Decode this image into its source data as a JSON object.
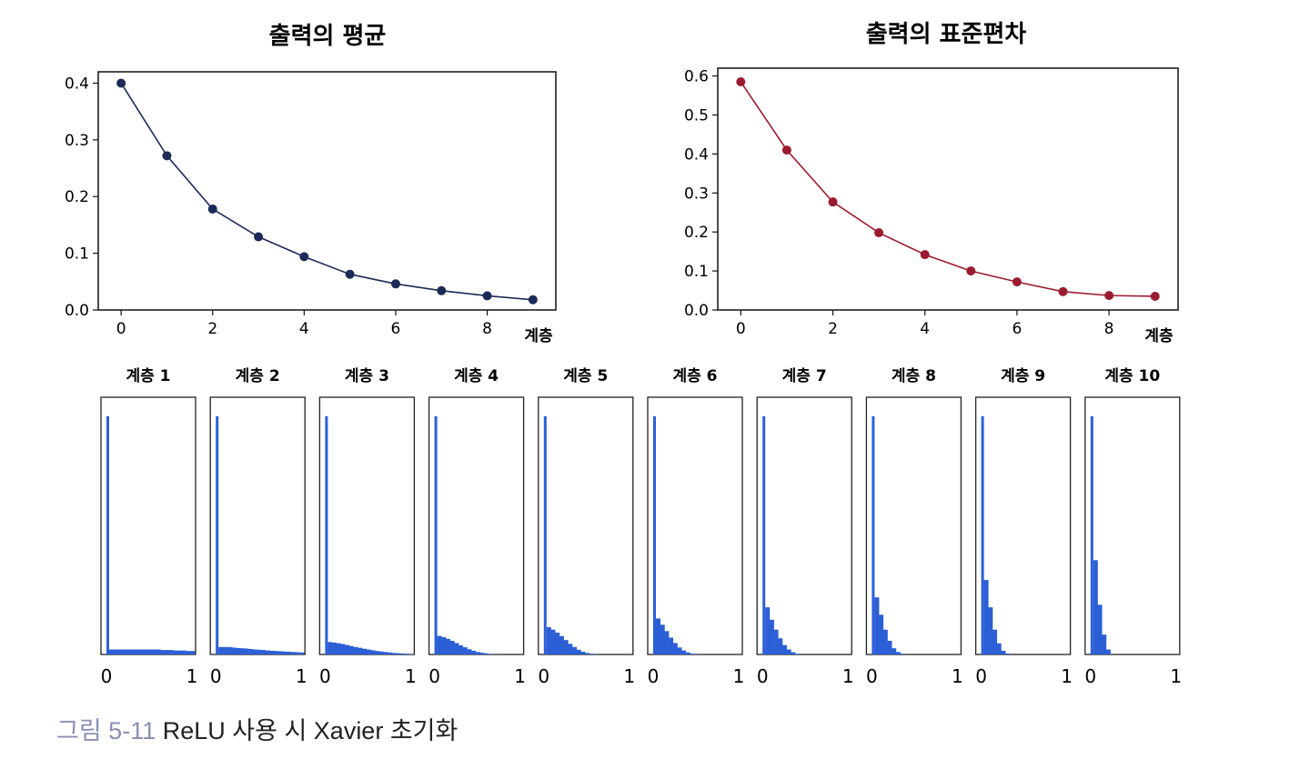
{
  "chart_data": [
    {
      "type": "line",
      "title": "출력의 평균",
      "xlabel": "계층",
      "ylabel": "",
      "x": [
        0,
        1,
        2,
        3,
        4,
        5,
        6,
        7,
        8,
        9
      ],
      "series": [
        {
          "values": [
            0.4,
            0.272,
            0.178,
            0.129,
            0.094,
            0.063,
            0.046,
            0.034,
            0.025,
            0.018
          ]
        }
      ],
      "xticks": [
        "0",
        "2",
        "4",
        "6",
        "8"
      ],
      "yticks": [
        "0.0",
        "0.1",
        "0.2",
        "0.3",
        "0.4"
      ],
      "xlim": [
        -0.5,
        9.5
      ],
      "ylim": [
        0,
        0.42
      ],
      "color": "#1c2a57"
    },
    {
      "type": "line",
      "title": "출력의 표준편차",
      "xlabel": "계층",
      "ylabel": "",
      "x": [
        0,
        1,
        2,
        3,
        4,
        5,
        6,
        7,
        8,
        9
      ],
      "series": [
        {
          "values": [
            0.585,
            0.41,
            0.277,
            0.198,
            0.142,
            0.1,
            0.072,
            0.047,
            0.037,
            0.035
          ]
        }
      ],
      "xticks": [
        "0",
        "2",
        "4",
        "6",
        "8"
      ],
      "yticks": [
        "0.0",
        "0.1",
        "0.2",
        "0.3",
        "0.4",
        "0.5",
        "0.6"
      ],
      "xlim": [
        -0.5,
        9.5
      ],
      "ylim": [
        0,
        0.62
      ],
      "color": "#9b1b30"
    },
    {
      "type": "histogram",
      "panels": [
        {
          "title": "계층 1",
          "spike": 0.96,
          "tail": [
            0.02,
            0.02,
            0.02,
            0.02,
            0.02,
            0.02,
            0.02,
            0.02,
            0.02,
            0.02,
            0.02,
            0.02,
            0.018,
            0.018,
            0.018,
            0.016,
            0.016,
            0.016,
            0.014,
            0.014
          ]
        },
        {
          "title": "계층 2",
          "spike": 0.96,
          "tail": [
            0.03,
            0.03,
            0.03,
            0.028,
            0.026,
            0.025,
            0.024,
            0.022,
            0.02,
            0.019,
            0.018,
            0.016,
            0.015,
            0.014,
            0.013,
            0.012,
            0.011,
            0.01,
            0.009,
            0.008
          ]
        },
        {
          "title": "계층 3",
          "spike": 0.96,
          "tail": [
            0.05,
            0.048,
            0.045,
            0.042,
            0.038,
            0.034,
            0.03,
            0.027,
            0.023,
            0.02,
            0.017,
            0.014,
            0.012,
            0.01,
            0.008,
            0.006,
            0.005,
            0.004,
            0.003,
            0.002
          ]
        },
        {
          "title": "계층 4",
          "spike": 0.96,
          "tail": [
            0.075,
            0.07,
            0.063,
            0.055,
            0.046,
            0.037,
            0.029,
            0.021,
            0.015,
            0.01,
            0.007,
            0.004,
            0.002,
            0.001
          ]
        },
        {
          "title": "계층 5",
          "spike": 0.96,
          "tail": [
            0.11,
            0.1,
            0.088,
            0.074,
            0.058,
            0.043,
            0.03,
            0.019,
            0.011,
            0.006,
            0.003,
            0.001
          ]
        },
        {
          "title": "계층 6",
          "spike": 0.96,
          "tail": [
            0.145,
            0.12,
            0.094,
            0.068,
            0.046,
            0.028,
            0.016,
            0.008,
            0.003,
            0.001
          ]
        },
        {
          "title": "계층 7",
          "spike": 0.96,
          "tail": [
            0.19,
            0.14,
            0.1,
            0.065,
            0.038,
            0.02,
            0.009,
            0.003
          ]
        },
        {
          "title": "계층 8",
          "spike": 0.96,
          "tail": [
            0.23,
            0.16,
            0.1,
            0.055,
            0.025,
            0.01,
            0.003
          ]
        },
        {
          "title": "계층 9",
          "spike": 0.96,
          "tail": [
            0.3,
            0.19,
            0.1,
            0.045,
            0.015,
            0.004
          ]
        },
        {
          "title": "계층 10",
          "spike": 0.96,
          "tail": [
            0.38,
            0.2,
            0.08,
            0.02
          ]
        }
      ],
      "xticks": [
        "0",
        "1"
      ],
      "xlim": [
        0,
        1
      ],
      "color": "#2c5fd6"
    }
  ],
  "caption": {
    "figure_number": "그림 5-11",
    "title": "ReLU 사용 시 Xavier 초기화"
  }
}
